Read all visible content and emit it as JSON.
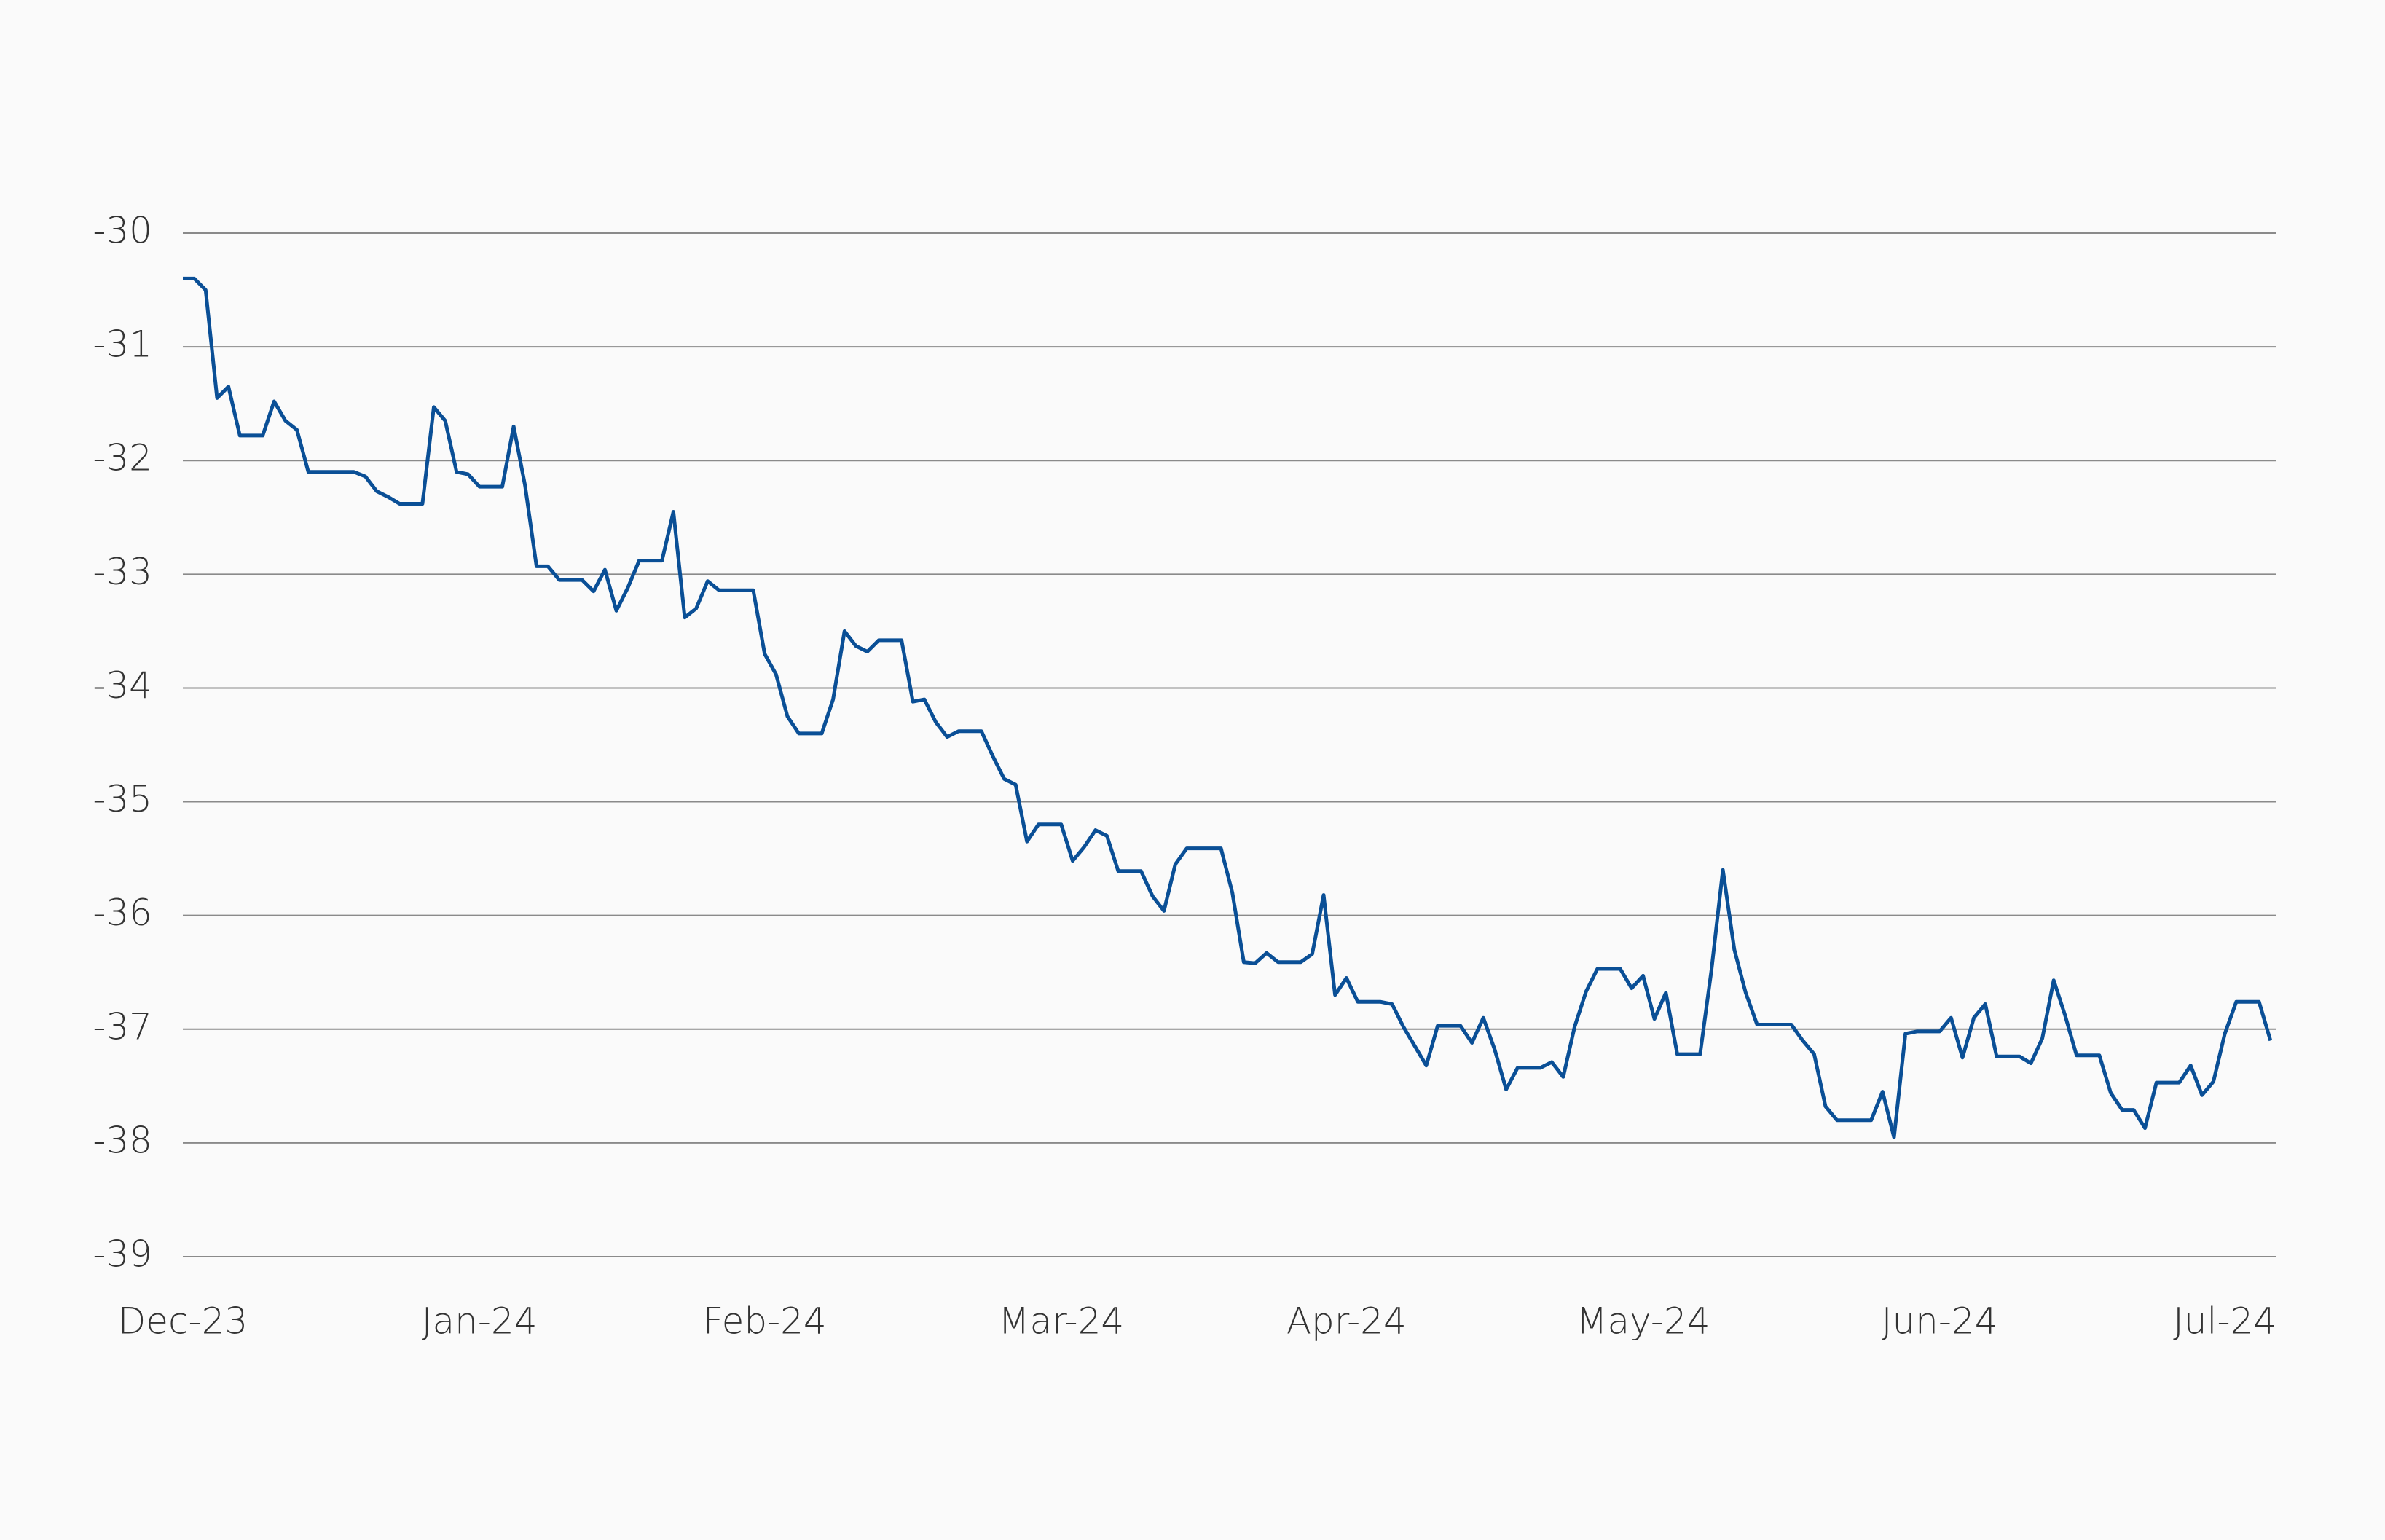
{
  "chart_data": {
    "type": "line",
    "categories": [
      "Dec-23",
      null,
      null,
      null,
      null,
      null,
      null,
      null,
      null,
      null,
      null,
      null,
      null,
      null,
      null,
      null,
      null,
      null,
      null,
      null,
      null,
      null,
      null,
      null,
      null,
      null,
      "Jan-24",
      null,
      null,
      null,
      null,
      null,
      null,
      null,
      null,
      null,
      null,
      null,
      null,
      null,
      null,
      null,
      null,
      null,
      null,
      null,
      null,
      null,
      null,
      null,
      null,
      "Feb-24",
      null,
      null,
      null,
      null,
      null,
      null,
      null,
      null,
      null,
      null,
      null,
      null,
      null,
      null,
      null,
      null,
      null,
      null,
      null,
      null,
      null,
      null,
      null,
      null,
      null,
      "Mar-24",
      null,
      null,
      null,
      null,
      null,
      null,
      null,
      null,
      null,
      null,
      null,
      null,
      null,
      null,
      null,
      null,
      null,
      null,
      null,
      null,
      null,
      null,
      null,
      null,
      "Apr-24",
      null,
      null,
      null,
      null,
      null,
      null,
      null,
      null,
      null,
      null,
      null,
      null,
      null,
      null,
      null,
      null,
      null,
      null,
      null,
      null,
      null,
      null,
      null,
      null,
      null,
      "May-24",
      null,
      null,
      null,
      null,
      null,
      null,
      null,
      null,
      null,
      null,
      null,
      null,
      null,
      null,
      null,
      null,
      null,
      null,
      null,
      null,
      null,
      null,
      null,
      null,
      null,
      "Jun-24",
      null,
      null,
      null,
      null,
      null,
      null,
      null,
      null,
      null,
      null,
      null,
      null,
      null,
      null,
      null,
      null,
      null,
      null,
      null,
      null,
      null,
      null,
      null,
      null,
      "Jul-24",
      null,
      null,
      null,
      null
    ],
    "series": [
      {
        "color": "#0a4f96",
        "values": [
          -30.4,
          -30.4,
          -30.5,
          -31.45,
          -31.35,
          -31.78,
          -31.78,
          -31.78,
          -31.48,
          -31.65,
          -31.73,
          -32.1,
          -32.1,
          -32.1,
          -32.1,
          -32.1,
          -32.14,
          -32.27,
          -32.32,
          -32.38,
          -32.38,
          -32.38,
          -31.53,
          -31.65,
          -32.1,
          -32.12,
          -32.23,
          -32.23,
          -32.23,
          -31.7,
          -32.22,
          -32.93,
          -32.93,
          -33.05,
          -33.05,
          -33.05,
          -33.15,
          -32.96,
          -33.32,
          -33.12,
          -32.88,
          -32.88,
          -32.88,
          -32.45,
          -33.38,
          -33.3,
          -33.06,
          -33.14,
          -33.14,
          -33.14,
          -33.14,
          -33.7,
          -33.88,
          -34.25,
          -34.4,
          -34.4,
          -34.4,
          -34.1,
          -33.5,
          -33.63,
          -33.68,
          -33.58,
          -33.58,
          -33.58,
          -34.12,
          -34.1,
          -34.3,
          -34.43,
          -34.38,
          -34.38,
          -34.38,
          -34.6,
          -34.8,
          -34.85,
          -35.35,
          -35.2,
          -35.2,
          -35.2,
          -35.52,
          -35.4,
          -35.25,
          -35.3,
          -35.61,
          -35.61,
          -35.61,
          -35.83,
          -35.96,
          -35.55,
          -35.41,
          -35.41,
          -35.41,
          -35.41,
          -35.8,
          -36.41,
          -36.42,
          -36.33,
          -36.41,
          -36.41,
          -36.41,
          -36.34,
          -35.82,
          -36.7,
          -36.55,
          -36.76,
          -36.76,
          -36.76,
          -36.78,
          -36.98,
          -37.15,
          -37.32,
          -36.97,
          -36.97,
          -36.97,
          -37.12,
          -36.9,
          -37.18,
          -37.53,
          -37.34,
          -37.34,
          -37.34,
          -37.29,
          -37.42,
          -36.98,
          -36.67,
          -36.47,
          -36.47,
          -36.47,
          -36.64,
          -36.53,
          -36.91,
          -36.68,
          -37.22,
          -37.22,
          -37.22,
          -36.48,
          -35.6,
          -36.3,
          -36.68,
          -36.96,
          -36.96,
          -36.96,
          -36.96,
          -37.1,
          -37.22,
          -37.68,
          -37.8,
          -37.8,
          -37.8,
          -37.8,
          -37.55,
          -37.95,
          -37.04,
          -37.02,
          -37.02,
          -37.02,
          -36.9,
          -37.25,
          -36.9,
          -36.78,
          -37.24,
          -37.24,
          -37.24,
          -37.3,
          -37.08,
          -36.57,
          -36.88,
          -37.23,
          -37.23,
          -37.23,
          -37.56,
          -37.71,
          -37.71,
          -37.87,
          -37.47,
          -37.47,
          -37.47,
          -37.32,
          -37.58,
          -37.46,
          -37.04,
          -36.76,
          -36.76,
          -36.76,
          -37.1
        ]
      }
    ],
    "ylim": [
      -39,
      -30
    ],
    "yticks": [
      -30,
      -31,
      -32,
      -33,
      -34,
      -35,
      -36,
      -37,
      -38,
      -39
    ],
    "grid": true
  }
}
